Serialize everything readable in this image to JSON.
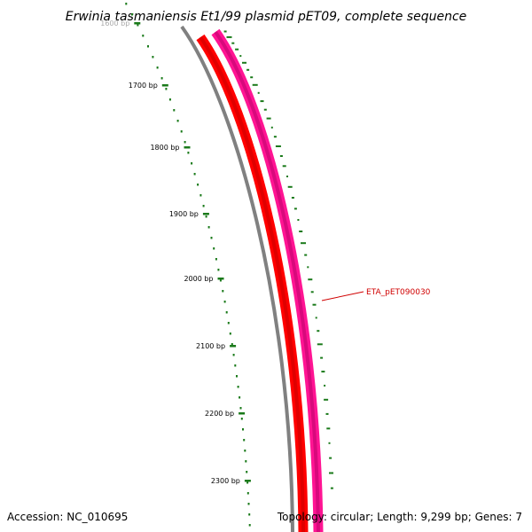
{
  "title": "Erwinia tasmaniensis Et1/99 plasmid pET09, complete sequence",
  "footer": {
    "accession": "Accession: NC_010695",
    "summary": "Topology: circular; Length: 9,299 bp; Genes: 7"
  },
  "ticks": [
    {
      "label": "1600 bp"
    },
    {
      "label": "1700 bp"
    },
    {
      "label": "1800 bp"
    },
    {
      "label": "1900 bp"
    },
    {
      "label": "2000 bp"
    },
    {
      "label": "2100 bp"
    },
    {
      "label": "2200 bp"
    },
    {
      "label": "2300 bp"
    }
  ],
  "tracks": {
    "backbone_color": "#808080",
    "forward_gene_color": "#ff0000",
    "reverse_gene_color": "#ff1493",
    "scale_color": "#1a7a1a",
    "gc_skew_color": "#1a7a1a"
  },
  "gene_labels": [
    {
      "text": "ETA_pET090030"
    }
  ]
}
